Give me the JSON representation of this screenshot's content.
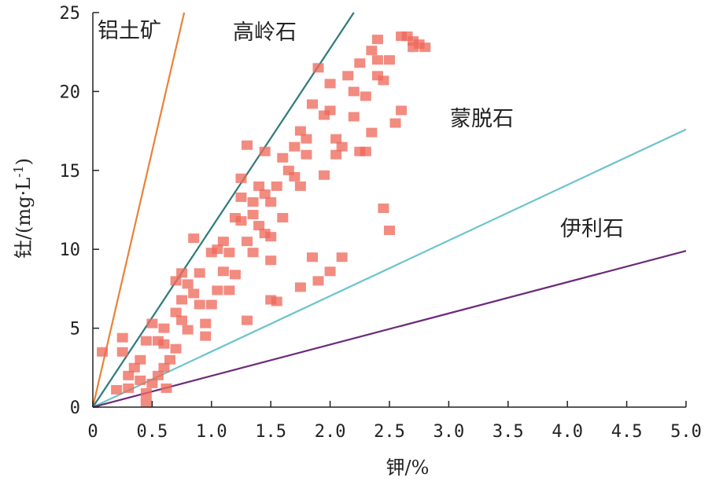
{
  "chart_data": {
    "type": "scatter",
    "title": "",
    "xlabel": "钾/%",
    "ylabel": "钍/(mg·L",
    "ylabel_superscript": "-1",
    "ylabel_close": ")",
    "xlim": [
      0,
      5.0
    ],
    "ylim": [
      0,
      25
    ],
    "x_ticks": [
      "0",
      "0.5",
      "1.0",
      "1.5",
      "2.0",
      "2.5",
      "3.0",
      "3.5",
      "4.0",
      "4.5",
      "5.0"
    ],
    "y_ticks": [
      "0",
      "5",
      "10",
      "15",
      "20",
      "25"
    ],
    "grid": false,
    "region_labels": {
      "bauxite": "铝土矿",
      "kaolinite": "高岭石",
      "montmorillonite": "蒙脱石",
      "illite": "伊利石"
    },
    "reference_lines": [
      {
        "key": "bauxite",
        "color": "#e8823a",
        "x": [
          0,
          0.77
        ],
        "y": [
          0,
          25
        ]
      },
      {
        "key": "kaolinite",
        "color": "#2e7a7c",
        "x": [
          0,
          2.2
        ],
        "y": [
          0,
          25
        ]
      },
      {
        "key": "montmorillonite",
        "color": "#6cc4cc",
        "x": [
          0,
          5.0
        ],
        "y": [
          0,
          17.6
        ]
      },
      {
        "key": "illite",
        "color": "#6b2a7a",
        "x": [
          0,
          5.0
        ],
        "y": [
          0,
          9.9
        ]
      }
    ],
    "marker_color": "#ee6a5c",
    "points": [
      [
        0.08,
        3.5
      ],
      [
        0.2,
        1.1
      ],
      [
        0.25,
        4.4
      ],
      [
        0.25,
        3.5
      ],
      [
        0.3,
        2.0
      ],
      [
        0.3,
        1.2
      ],
      [
        0.35,
        2.5
      ],
      [
        0.4,
        1.7
      ],
      [
        0.45,
        0.9
      ],
      [
        0.4,
        3.0
      ],
      [
        0.45,
        4.2
      ],
      [
        0.45,
        0.3
      ],
      [
        0.5,
        5.3
      ],
      [
        0.5,
        1.5
      ],
      [
        0.55,
        4.2
      ],
      [
        0.55,
        2.0
      ],
      [
        0.6,
        4.0
      ],
      [
        0.6,
        5.0
      ],
      [
        0.6,
        2.5
      ],
      [
        0.62,
        1.2
      ],
      [
        0.65,
        3.0
      ],
      [
        0.7,
        3.7
      ],
      [
        0.7,
        8.0
      ],
      [
        0.7,
        6.0
      ],
      [
        0.75,
        6.8
      ],
      [
        0.75,
        5.5
      ],
      [
        0.75,
        8.5
      ],
      [
        0.8,
        4.9
      ],
      [
        0.8,
        7.8
      ],
      [
        0.85,
        7.2
      ],
      [
        0.85,
        10.7
      ],
      [
        0.9,
        8.5
      ],
      [
        0.9,
        6.5
      ],
      [
        0.95,
        5.3
      ],
      [
        0.95,
        4.5
      ],
      [
        1.0,
        9.8
      ],
      [
        1.0,
        6.5
      ],
      [
        1.05,
        10.0
      ],
      [
        1.05,
        7.4
      ],
      [
        1.1,
        10.5
      ],
      [
        1.1,
        8.6
      ],
      [
        1.15,
        9.8
      ],
      [
        1.15,
        7.4
      ],
      [
        1.2,
        8.4
      ],
      [
        1.2,
        12.0
      ],
      [
        1.25,
        11.8
      ],
      [
        1.25,
        14.5
      ],
      [
        1.25,
        13.3
      ],
      [
        1.3,
        10.5
      ],
      [
        1.3,
        16.6
      ],
      [
        1.3,
        5.5
      ],
      [
        1.35,
        13.0
      ],
      [
        1.35,
        9.8
      ],
      [
        1.35,
        12.2
      ],
      [
        1.4,
        14.0
      ],
      [
        1.4,
        11.5
      ],
      [
        1.45,
        13.5
      ],
      [
        1.45,
        11.0
      ],
      [
        1.45,
        16.2
      ],
      [
        1.5,
        13.0
      ],
      [
        1.5,
        9.3
      ],
      [
        1.5,
        10.8
      ],
      [
        1.5,
        6.8
      ],
      [
        1.55,
        14.0
      ],
      [
        1.55,
        6.7
      ],
      [
        1.6,
        15.8
      ],
      [
        1.6,
        12.0
      ],
      [
        1.65,
        15.0
      ],
      [
        1.7,
        16.5
      ],
      [
        1.7,
        14.6
      ],
      [
        1.75,
        17.5
      ],
      [
        1.75,
        14.0
      ],
      [
        1.75,
        7.6
      ],
      [
        1.8,
        16.0
      ],
      [
        1.8,
        17.0
      ],
      [
        1.85,
        9.5
      ],
      [
        1.85,
        19.2
      ],
      [
        1.9,
        21.5
      ],
      [
        1.9,
        8.0
      ],
      [
        1.95,
        18.5
      ],
      [
        1.95,
        14.7
      ],
      [
        2.0,
        20.5
      ],
      [
        2.0,
        18.8
      ],
      [
        2.0,
        8.6
      ],
      [
        2.05,
        17.0
      ],
      [
        2.05,
        16.0
      ],
      [
        2.1,
        9.5
      ],
      [
        2.1,
        16.5
      ],
      [
        2.15,
        21.0
      ],
      [
        2.2,
        18.4
      ],
      [
        2.2,
        20.0
      ],
      [
        2.25,
        16.2
      ],
      [
        2.25,
        21.8
      ],
      [
        2.3,
        19.7
      ],
      [
        2.3,
        16.2
      ],
      [
        2.35,
        22.6
      ],
      [
        2.35,
        17.4
      ],
      [
        2.4,
        23.3
      ],
      [
        2.4,
        21.0
      ],
      [
        2.4,
        22.0
      ],
      [
        2.45,
        20.7
      ],
      [
        2.45,
        12.6
      ],
      [
        2.5,
        22.0
      ],
      [
        2.5,
        11.2
      ],
      [
        2.55,
        18.0
      ],
      [
        2.6,
        23.5
      ],
      [
        2.6,
        18.8
      ],
      [
        2.65,
        23.5
      ],
      [
        2.7,
        23.2
      ],
      [
        2.7,
        22.8
      ],
      [
        2.75,
        23.0
      ],
      [
        2.8,
        22.8
      ]
    ]
  }
}
